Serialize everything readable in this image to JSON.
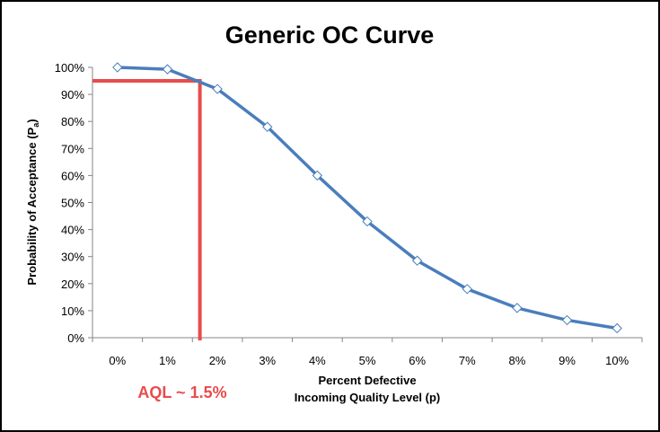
{
  "chart_data": {
    "type": "line",
    "title": "Generic OC Curve",
    "xlabel": "Percent Defective",
    "xlabel2": "Incoming Quality Level (p)",
    "ylabel_main": "Probability of Acceptance (P",
    "ylabel_sub": "a",
    "ylabel_close": ")",
    "categories": [
      "0%",
      "1%",
      "2%",
      "3%",
      "4%",
      "5%",
      "6%",
      "7%",
      "8%",
      "9%",
      "10%"
    ],
    "y_ticks": [
      "0%",
      "10%",
      "20%",
      "30%",
      "40%",
      "50%",
      "60%",
      "70%",
      "80%",
      "90%",
      "100%"
    ],
    "ylim": [
      0,
      100
    ],
    "grid": false,
    "series": [
      {
        "name": "Pa",
        "color": "#4a7ebb",
        "marker": "diamond",
        "values": [
          100,
          99.3,
          92,
          78,
          60,
          43,
          28.5,
          18,
          11,
          6.5,
          3.5
        ]
      }
    ],
    "annotation": {
      "label": "AQL ~ 1.5%",
      "color": "#e84c4c",
      "p_percent": 1.5,
      "pa_percent": 95
    }
  }
}
